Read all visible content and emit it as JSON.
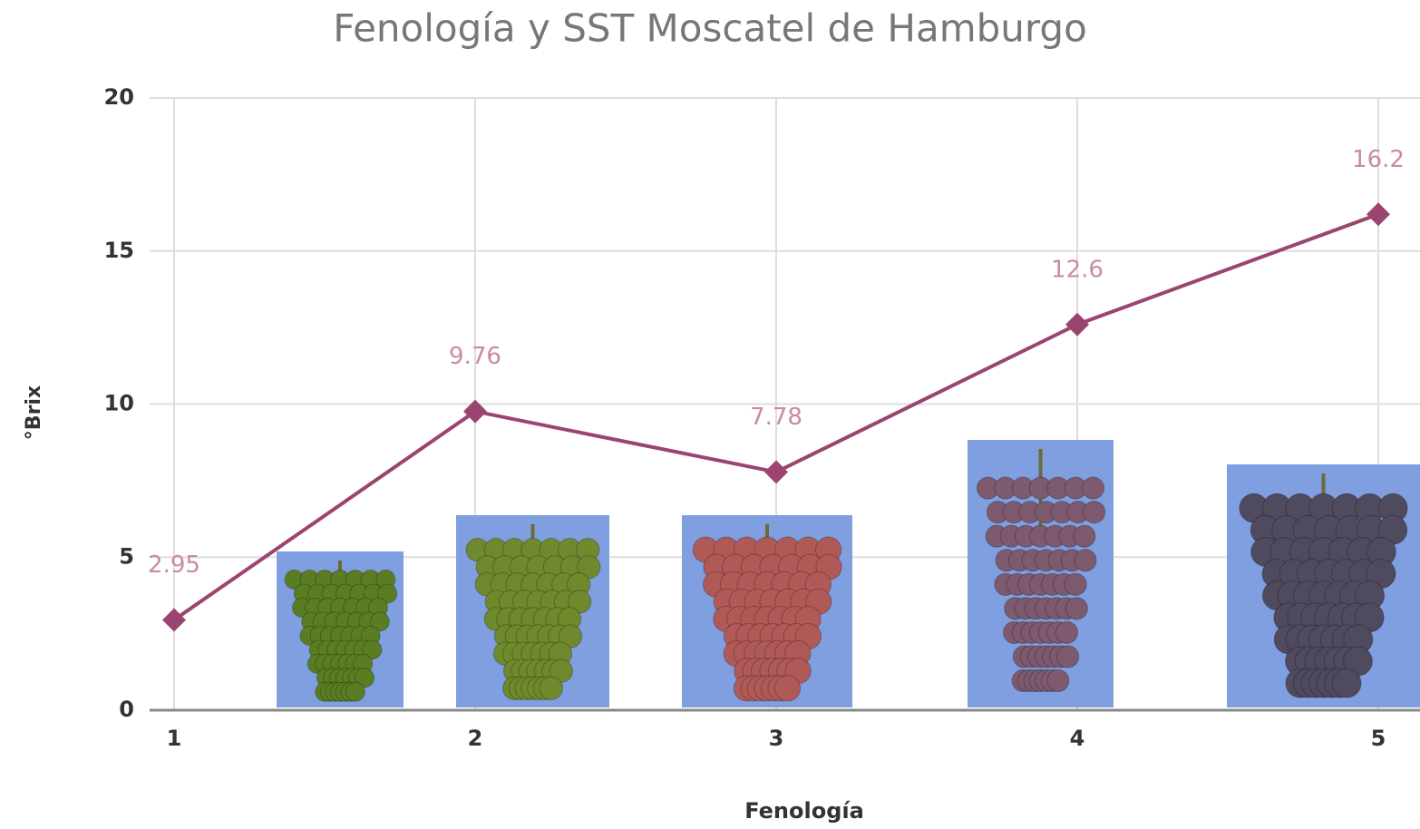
{
  "chart_data": {
    "type": "line",
    "title": "Fenología y SST Moscatel de Hamburgo",
    "x_label": "Fenología",
    "y_label": "°Brix",
    "x": [
      1,
      2,
      3,
      4,
      5
    ],
    "series": [
      {
        "color": "#9c4470",
        "values": [
          2.95,
          9.76,
          7.78,
          12.6,
          16.2
        ]
      }
    ],
    "xlim": [
      1,
      5
    ],
    "xticks": [
      1,
      2,
      3,
      4,
      5
    ],
    "ylim": [
      0,
      20
    ],
    "yticks": [
      0,
      5,
      10,
      15,
      20
    ],
    "grid": true
  }
}
